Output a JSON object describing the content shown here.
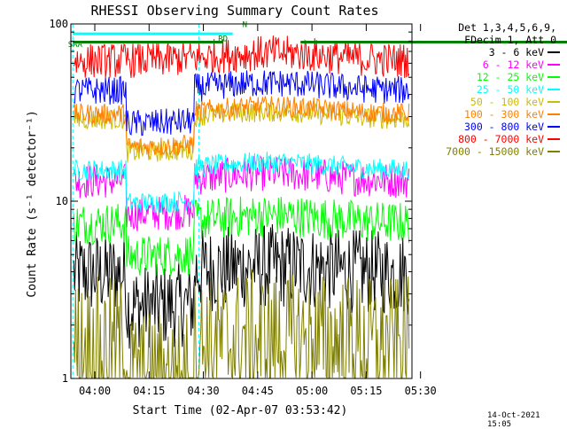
{
  "chart_data": {
    "type": "line",
    "title": "RHESSI Observing Summary Count Rates",
    "xlabel": "Start Time (02-Apr-07 03:53:42)",
    "ylabel": "Count Rate (s⁻¹ detector⁻¹)",
    "y_scale": "log",
    "ylim": [
      1,
      100
    ],
    "y_ticks": [
      {
        "value": 1,
        "label": "1"
      },
      {
        "value": 10,
        "label": "10"
      },
      {
        "value": 100,
        "label": "100"
      }
    ],
    "xlim_minutes": [
      -3.7,
      31.5
    ],
    "x_ticks": [
      {
        "minutes": 0,
        "label": "04:00"
      },
      {
        "minutes": 15,
        "label": "04:15"
      },
      {
        "minutes": 30,
        "label": "04:30"
      },
      {
        "minutes": 45,
        "label": "04:45"
      },
      {
        "minutes": 60,
        "label": "05:00"
      },
      {
        "minutes": 75,
        "label": "05:15"
      },
      {
        "minutes": 90,
        "label": "05:30"
      }
    ],
    "legend_header": [
      "Det 1,3,4,5,6,9,",
      "FDecim 1, Att 0"
    ],
    "legend_position": "right",
    "annotations": [
      {
        "text": "RD",
        "x_min": 11.5,
        "y": 80
      },
      {
        "text": "N",
        "x_min": 14,
        "y": 96
      },
      {
        "text": "SAA",
        "x_min": -4,
        "y": 74
      }
    ],
    "series": [
      {
        "name": "3 - 6 keV",
        "color": "#000000",
        "base": 3.9,
        "peak": 13,
        "noise": 0.12
      },
      {
        "name": "6 - 12 keV",
        "color": "#ff00ff",
        "base": 13,
        "peak": 21,
        "noise": 0.05
      },
      {
        "name": "12 - 25 keV",
        "color": "#00ff00",
        "base": 7.5,
        "peak": 14,
        "noise": 0.06
      },
      {
        "name": "25 - 50 keV",
        "color": "#00ffff",
        "base": 15,
        "peak": 23,
        "noise": 0.03
      },
      {
        "name": "50 - 100 keV",
        "color": "#ccbb00",
        "base": 29,
        "peak": 56,
        "noise": 0.03
      },
      {
        "name": "100 - 300 keV",
        "color": "#ff8000",
        "base": 31,
        "peak": 58,
        "noise": 0.03
      },
      {
        "name": "300 - 800 keV",
        "color": "#0000ff",
        "base": 42,
        "peak": 60,
        "noise": 0.04
      },
      {
        "name": "800 - 7000 keV",
        "color": "#ff0000",
        "base": 62,
        "peak": 62,
        "noise": 0.05
      },
      {
        "name": "7000 - 15000 keV",
        "color": "#808000",
        "base": 1.5,
        "peak": 3.4,
        "noise": 0.2
      }
    ],
    "flag_lines": [
      {
        "label": "RD",
        "color": "#008000",
        "y": 79,
        "intervals": [
          [
            -3.5,
            12
          ],
          [
            20,
            48
          ],
          [
            74,
            90
          ]
        ]
      },
      {
        "label": "N",
        "color": "#00ffff",
        "y": 88,
        "intervals": [
          [
            -3.5,
            13
          ],
          [
            75,
            90
          ]
        ]
      }
    ],
    "shaded_intervals_minutes": [
      [
        -3.7,
        2.5
      ],
      [
        49,
        75.5
      ]
    ],
    "vertical_markers_minutes": [
      -3.5,
      9.5,
      75.5,
      90.5
    ]
  },
  "footer": {
    "date": "14-Oct-2021 15:05"
  }
}
